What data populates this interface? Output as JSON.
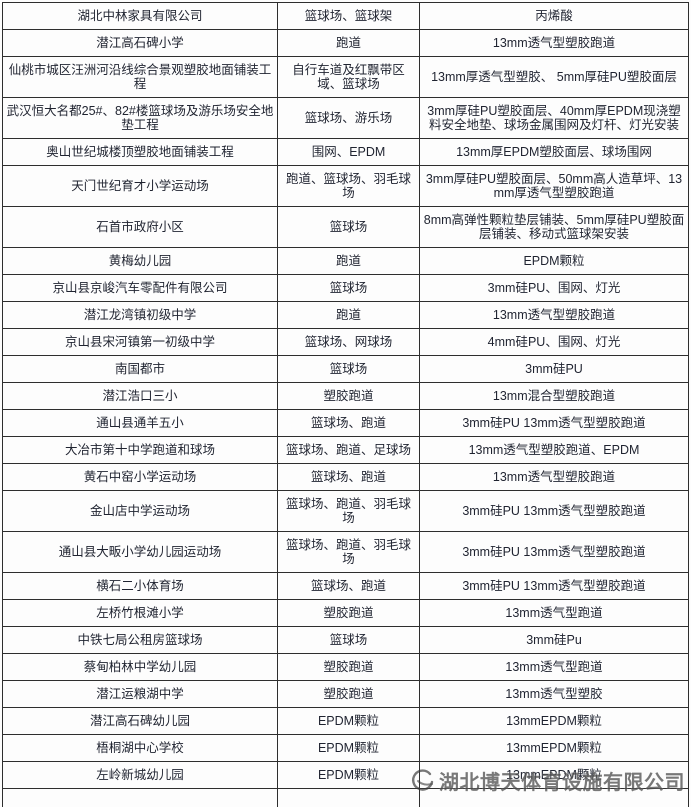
{
  "table": {
    "columns": [
      "project_name",
      "facility",
      "material"
    ],
    "rows": [
      {
        "name": "湖北中林家具有限公司",
        "facility": "篮球场、篮球架",
        "material": "丙烯酸"
      },
      {
        "name": "潜江高石碑小学",
        "facility": "跑道",
        "material": "13mm透气型塑胶跑道"
      },
      {
        "name": "仙桃市城区汪洲河沿线综合景观塑胶地面铺装工程",
        "facility": "自行车道及红飘带区域、篮球场",
        "material": "13mm厚透气型塑胶、 5mm厚硅PU塑胶面层"
      },
      {
        "name": "武汉恒大名都25#、82#楼篮球场及游乐场安全地垫工程",
        "facility": "篮球场、游乐场",
        "material": "3mm厚硅PU塑胶面层、40mm厚EPDM现浇塑料安全地垫、球场金属围网及灯杆、灯光安装"
      },
      {
        "name": "奥山世纪城楼顶塑胶地面铺装工程",
        "facility": "围网、EPDM",
        "material": "13mm厚EPDM塑胶面层、球场围网"
      },
      {
        "name": "天门世纪育才小学运动场",
        "facility": "跑道、篮球场、羽毛球场",
        "material": "3mm厚硅PU塑胶面层、50mm高人造草坪、13mm厚透气型塑胶跑道"
      },
      {
        "name": "石首市政府小区",
        "facility": "篮球场",
        "material": "8mm高弹性颗粒垫层铺装、5mm厚硅PU塑胶面层铺装、移动式篮球架安装"
      },
      {
        "name": "黄梅幼儿园",
        "facility": "跑道",
        "material": "EPDM颗粒"
      },
      {
        "name": "京山县京峻汽车零配件有限公司",
        "facility": "篮球场",
        "material": "3mm硅PU、围网、灯光"
      },
      {
        "name": "潜江龙湾镇初级中学",
        "facility": "跑道",
        "material": "13mm透气型塑胶跑道"
      },
      {
        "name": "京山县宋河镇第一初级中学",
        "facility": "篮球场、网球场",
        "material": "4mm硅PU、围网、灯光"
      },
      {
        "name": "南国都市",
        "facility": "篮球场",
        "material": "3mm硅PU"
      },
      {
        "name": "潜江浩口三小",
        "facility": "塑胶跑道",
        "material": "13mm混合型塑胶跑道"
      },
      {
        "name": "通山县通羊五小",
        "facility": "篮球场、跑道",
        "material": "3mm硅PU 13mm透气型塑胶跑道"
      },
      {
        "name": "大冶市第十中学跑道和球场",
        "facility": "篮球场、跑道、足球场",
        "material": "13mm透气型塑胶跑道、EPDM"
      },
      {
        "name": "黄石中窑小学运动场",
        "facility": "篮球场、跑道",
        "material": "13mm透气型塑胶跑道"
      },
      {
        "name": "金山店中学运动场",
        "facility": "篮球场、跑道、羽毛球场",
        "material": "3mm硅PU 13mm透气型塑胶跑道"
      },
      {
        "name": "通山县大畈小学幼儿园运动场",
        "facility": "篮球场、跑道、羽毛球场",
        "material": "3mm硅PU 13mm透气型塑胶跑道"
      },
      {
        "name": "横石二小体育场",
        "facility": "篮球场、跑道",
        "material": "3mm硅PU 13mm透气型塑胶跑道"
      },
      {
        "name": "左桥竹根滩小学",
        "facility": "塑胶跑道",
        "material": "13mm透气型跑道"
      },
      {
        "name": "中铁七局公租房篮球场",
        "facility": "篮球场",
        "material": "3mm硅Pu"
      },
      {
        "name": "蔡甸柏林中学幼儿园",
        "facility": "塑胶跑道",
        "material": "13mm透气型跑道"
      },
      {
        "name": "潜江运粮湖中学",
        "facility": "塑胶跑道",
        "material": "13mm透气型塑胶"
      },
      {
        "name": "潜江高石碑幼儿园",
        "facility": "EPDM颗粒",
        "material": "13mmEPDM颗粒"
      },
      {
        "name": "梧桐湖中心学校",
        "facility": "EPDM颗粒",
        "material": "13mmEPDM颗粒"
      },
      {
        "name": "左岭新城幼儿园",
        "facility": "EPDM颗粒",
        "material": "13mmEPDM颗粒"
      }
    ]
  },
  "watermark": {
    "company": "湖北博天体育设施有限公司",
    "logo_icon": "sports-company-logo-icon"
  },
  "colors": {
    "border": "#2e2e2e",
    "text": "#1f2330",
    "watermark_gray": "#3a3a3a",
    "background": "#fdfdfd"
  }
}
